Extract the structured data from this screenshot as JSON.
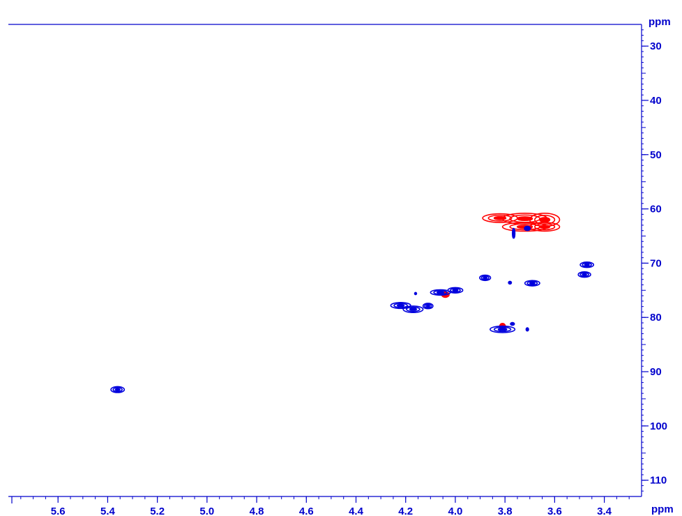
{
  "chart_data": {
    "type": "heatmap",
    "subtype": "2D NMR contour plot",
    "title": "",
    "x_axis": {
      "unit_label": "ppm",
      "range": [
        5.8,
        3.25
      ],
      "reversed": true,
      "ticks": [
        5.6,
        5.4,
        5.2,
        5.0,
        4.8,
        4.6,
        4.4,
        4.2,
        4.0,
        3.8,
        3.6,
        3.4
      ],
      "tick_labels": [
        "5.6",
        "5.4",
        "5.2",
        "5.0",
        "4.8",
        "4.6",
        "4.4",
        "4.2",
        "4.0",
        "3.8",
        "3.6",
        "3.4"
      ]
    },
    "y_axis": {
      "unit_label": "ppm",
      "range": [
        26,
        113
      ],
      "reversed": true,
      "position": "right",
      "ticks": [
        30,
        40,
        50,
        60,
        70,
        80,
        90,
        100,
        110
      ],
      "tick_labels": [
        "30",
        "40",
        "50",
        "60",
        "70",
        "80",
        "90",
        "100",
        "110"
      ]
    },
    "grid": false,
    "legend": "none",
    "series": [
      {
        "color": "#ff0000",
        "peaks": [
          {
            "x": 3.82,
            "y": 61.7,
            "wx": 0.07,
            "wy": 0.8
          },
          {
            "x": 3.72,
            "y": 61.8,
            "wx": 0.09,
            "wy": 1.0
          },
          {
            "x": 3.64,
            "y": 62.0,
            "wx": 0.06,
            "wy": 1.2
          },
          {
            "x": 3.72,
            "y": 63.3,
            "wx": 0.09,
            "wy": 0.8
          },
          {
            "x": 3.64,
            "y": 63.3,
            "wx": 0.06,
            "wy": 0.8
          },
          {
            "x": 4.04,
            "y": 75.8,
            "wx": 0.015,
            "wy": 0.5
          },
          {
            "x": 3.81,
            "y": 81.7,
            "wx": 0.012,
            "wy": 0.6
          }
        ]
      },
      {
        "color": "#0000dd",
        "peaks": [
          {
            "x": 5.36,
            "y": 93.3,
            "wx": 0.027,
            "wy": 0.55
          },
          {
            "x": 4.22,
            "y": 77.8,
            "wx": 0.04,
            "wy": 0.55
          },
          {
            "x": 4.17,
            "y": 78.5,
            "wx": 0.04,
            "wy": 0.6
          },
          {
            "x": 4.11,
            "y": 77.9,
            "wx": 0.02,
            "wy": 0.5
          },
          {
            "x": 4.06,
            "y": 75.4,
            "wx": 0.04,
            "wy": 0.5
          },
          {
            "x": 4.0,
            "y": 75.0,
            "wx": 0.03,
            "wy": 0.5
          },
          {
            "x": 4.16,
            "y": 75.6,
            "wx": 0.004,
            "wy": 0.2
          },
          {
            "x": 3.88,
            "y": 72.7,
            "wx": 0.022,
            "wy": 0.5
          },
          {
            "x": 3.78,
            "y": 73.6,
            "wx": 0.006,
            "wy": 0.25
          },
          {
            "x": 3.69,
            "y": 73.7,
            "wx": 0.03,
            "wy": 0.5
          },
          {
            "x": 3.47,
            "y": 70.3,
            "wx": 0.027,
            "wy": 0.5
          },
          {
            "x": 3.48,
            "y": 72.1,
            "wx": 0.025,
            "wy": 0.5
          },
          {
            "x": 3.81,
            "y": 82.2,
            "wx": 0.05,
            "wy": 0.6
          },
          {
            "x": 3.77,
            "y": 81.2,
            "wx": 0.008,
            "wy": 0.25
          },
          {
            "x": 3.71,
            "y": 82.2,
            "wx": 0.005,
            "wy": 0.3
          },
          {
            "x": 3.765,
            "y": 64.5,
            "wx": 0.005,
            "wy": 0.9
          },
          {
            "x": 3.71,
            "y": 63.6,
            "wx": 0.012,
            "wy": 0.4
          }
        ]
      }
    ]
  }
}
